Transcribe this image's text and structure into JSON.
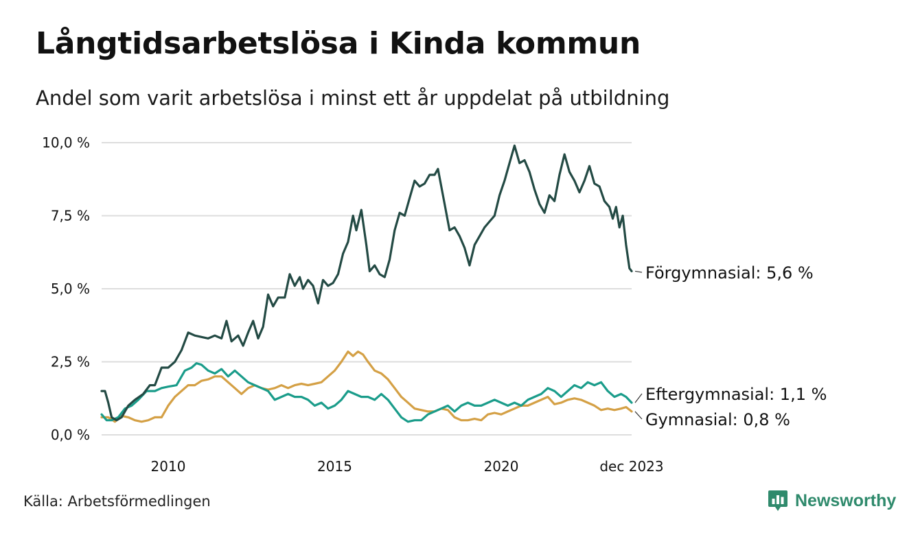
{
  "header": {
    "title": "Långtidsarbetslösa i Kinda kommun",
    "subtitle": "Andel som varit arbetslösa i minst ett år uppdelat på utbildning"
  },
  "footer": {
    "source": "Källa: Arbetsförmedlingen",
    "brand": "Newsworthy"
  },
  "colors": {
    "forgymnasial": "#234a44",
    "eftergymnasial": "#1a9c8a",
    "gymnasial": "#d4a045",
    "grid": "#dddddd",
    "brand": "#2f8a6c"
  },
  "chart_data": {
    "type": "line",
    "x_start": 2008.0,
    "x_end": 2023.917,
    "ylim": [
      0,
      10
    ],
    "yticks": [
      0,
      2.5,
      5,
      7.5,
      10
    ],
    "ytick_labels": [
      "0,0 %",
      "2,5 %",
      "5,0 %",
      "7,5 %",
      "10,0 %"
    ],
    "xticks": [
      2010,
      2015,
      2020,
      2023.917
    ],
    "xtick_labels": [
      "2010",
      "2015",
      "2020",
      "dec 2023"
    ],
    "series": [
      {
        "key": "forgymnasial",
        "name": "Förgymnasial",
        "end_label": "Förgymnasial: 5,6 %",
        "last_value": 5.6,
        "points": [
          [
            2008.0,
            1.5
          ],
          [
            2008.1,
            1.5
          ],
          [
            2008.2,
            1.1
          ],
          [
            2008.3,
            0.6
          ],
          [
            2008.45,
            0.5
          ],
          [
            2008.6,
            0.6
          ],
          [
            2008.8,
            1.0
          ],
          [
            2009.0,
            1.2
          ],
          [
            2009.25,
            1.4
          ],
          [
            2009.45,
            1.7
          ],
          [
            2009.6,
            1.7
          ],
          [
            2009.8,
            2.3
          ],
          [
            2010.0,
            2.3
          ],
          [
            2010.2,
            2.5
          ],
          [
            2010.4,
            2.9
          ],
          [
            2010.6,
            3.5
          ],
          [
            2010.8,
            3.4
          ],
          [
            2011.0,
            3.35
          ],
          [
            2011.2,
            3.3
          ],
          [
            2011.4,
            3.4
          ],
          [
            2011.6,
            3.3
          ],
          [
            2011.75,
            3.9
          ],
          [
            2011.9,
            3.2
          ],
          [
            2012.1,
            3.4
          ],
          [
            2012.25,
            3.05
          ],
          [
            2012.4,
            3.5
          ],
          [
            2012.55,
            3.9
          ],
          [
            2012.7,
            3.3
          ],
          [
            2012.85,
            3.7
          ],
          [
            2013.0,
            4.8
          ],
          [
            2013.15,
            4.4
          ],
          [
            2013.3,
            4.7
          ],
          [
            2013.5,
            4.7
          ],
          [
            2013.65,
            5.5
          ],
          [
            2013.8,
            5.1
          ],
          [
            2013.95,
            5.4
          ],
          [
            2014.05,
            5.0
          ],
          [
            2014.2,
            5.3
          ],
          [
            2014.35,
            5.1
          ],
          [
            2014.5,
            4.5
          ],
          [
            2014.65,
            5.3
          ],
          [
            2014.8,
            5.1
          ],
          [
            2014.95,
            5.2
          ],
          [
            2015.1,
            5.5
          ],
          [
            2015.25,
            6.2
          ],
          [
            2015.4,
            6.6
          ],
          [
            2015.55,
            7.5
          ],
          [
            2015.65,
            7.0
          ],
          [
            2015.8,
            7.7
          ],
          [
            2015.95,
            6.5
          ],
          [
            2016.05,
            5.6
          ],
          [
            2016.2,
            5.8
          ],
          [
            2016.35,
            5.5
          ],
          [
            2016.5,
            5.4
          ],
          [
            2016.65,
            6.0
          ],
          [
            2016.8,
            7.0
          ],
          [
            2016.95,
            7.6
          ],
          [
            2017.1,
            7.5
          ],
          [
            2017.25,
            8.1
          ],
          [
            2017.4,
            8.7
          ],
          [
            2017.55,
            8.5
          ],
          [
            2017.7,
            8.6
          ],
          [
            2017.85,
            8.9
          ],
          [
            2018.0,
            8.9
          ],
          [
            2018.1,
            9.1
          ],
          [
            2018.3,
            7.9
          ],
          [
            2018.45,
            7.0
          ],
          [
            2018.6,
            7.1
          ],
          [
            2018.75,
            6.8
          ],
          [
            2018.9,
            6.4
          ],
          [
            2019.05,
            5.8
          ],
          [
            2019.2,
            6.5
          ],
          [
            2019.35,
            6.8
          ],
          [
            2019.5,
            7.1
          ],
          [
            2019.65,
            7.3
          ],
          [
            2019.8,
            7.5
          ],
          [
            2019.95,
            8.2
          ],
          [
            2020.1,
            8.7
          ],
          [
            2020.25,
            9.3
          ],
          [
            2020.4,
            9.9
          ],
          [
            2020.55,
            9.3
          ],
          [
            2020.7,
            9.4
          ],
          [
            2020.85,
            9.0
          ],
          [
            2021.0,
            8.4
          ],
          [
            2021.15,
            7.9
          ],
          [
            2021.3,
            7.6
          ],
          [
            2021.45,
            8.2
          ],
          [
            2021.6,
            8.0
          ],
          [
            2021.75,
            8.9
          ],
          [
            2021.9,
            9.6
          ],
          [
            2022.05,
            9.0
          ],
          [
            2022.2,
            8.7
          ],
          [
            2022.35,
            8.3
          ],
          [
            2022.5,
            8.7
          ],
          [
            2022.65,
            9.2
          ],
          [
            2022.8,
            8.6
          ],
          [
            2022.95,
            8.5
          ],
          [
            2023.1,
            8.0
          ],
          [
            2023.25,
            7.8
          ],
          [
            2023.35,
            7.4
          ],
          [
            2023.45,
            7.8
          ],
          [
            2023.55,
            7.1
          ],
          [
            2023.65,
            7.5
          ],
          [
            2023.75,
            6.5
          ],
          [
            2023.85,
            5.7
          ],
          [
            2023.917,
            5.6
          ]
        ]
      },
      {
        "key": "eftergymnasial",
        "name": "Eftergymnasial",
        "end_label": "Eftergymnasial: 1,1 %",
        "last_value": 1.1,
        "points": [
          [
            2008.0,
            0.7
          ],
          [
            2008.15,
            0.5
          ],
          [
            2008.3,
            0.5
          ],
          [
            2008.5,
            0.6
          ],
          [
            2008.7,
            0.9
          ],
          [
            2008.9,
            1.0
          ],
          [
            2009.1,
            1.2
          ],
          [
            2009.35,
            1.5
          ],
          [
            2009.6,
            1.5
          ],
          [
            2009.8,
            1.6
          ],
          [
            2010.0,
            1.65
          ],
          [
            2010.25,
            1.7
          ],
          [
            2010.5,
            2.2
          ],
          [
            2010.7,
            2.3
          ],
          [
            2010.85,
            2.45
          ],
          [
            2011.0,
            2.4
          ],
          [
            2011.2,
            2.2
          ],
          [
            2011.4,
            2.1
          ],
          [
            2011.6,
            2.25
          ],
          [
            2011.8,
            2.0
          ],
          [
            2012.0,
            2.2
          ],
          [
            2012.2,
            2.0
          ],
          [
            2012.4,
            1.8
          ],
          [
            2012.6,
            1.7
          ],
          [
            2012.8,
            1.6
          ],
          [
            2013.0,
            1.5
          ],
          [
            2013.2,
            1.2
          ],
          [
            2013.4,
            1.3
          ],
          [
            2013.6,
            1.4
          ],
          [
            2013.8,
            1.3
          ],
          [
            2014.0,
            1.3
          ],
          [
            2014.2,
            1.2
          ],
          [
            2014.4,
            1.0
          ],
          [
            2014.6,
            1.1
          ],
          [
            2014.8,
            0.9
          ],
          [
            2015.0,
            1.0
          ],
          [
            2015.2,
            1.2
          ],
          [
            2015.4,
            1.5
          ],
          [
            2015.6,
            1.4
          ],
          [
            2015.8,
            1.3
          ],
          [
            2016.0,
            1.3
          ],
          [
            2016.2,
            1.2
          ],
          [
            2016.4,
            1.4
          ],
          [
            2016.6,
            1.2
          ],
          [
            2016.8,
            0.9
          ],
          [
            2017.0,
            0.6
          ],
          [
            2017.2,
            0.45
          ],
          [
            2017.4,
            0.5
          ],
          [
            2017.6,
            0.5
          ],
          [
            2017.8,
            0.7
          ],
          [
            2018.0,
            0.8
          ],
          [
            2018.2,
            0.9
          ],
          [
            2018.4,
            1.0
          ],
          [
            2018.6,
            0.8
          ],
          [
            2018.8,
            1.0
          ],
          [
            2019.0,
            1.1
          ],
          [
            2019.2,
            1.0
          ],
          [
            2019.4,
            1.0
          ],
          [
            2019.6,
            1.1
          ],
          [
            2019.8,
            1.2
          ],
          [
            2020.0,
            1.1
          ],
          [
            2020.2,
            1.0
          ],
          [
            2020.4,
            1.1
          ],
          [
            2020.6,
            1.0
          ],
          [
            2020.8,
            1.2
          ],
          [
            2021.0,
            1.3
          ],
          [
            2021.2,
            1.4
          ],
          [
            2021.4,
            1.6
          ],
          [
            2021.6,
            1.5
          ],
          [
            2021.8,
            1.3
          ],
          [
            2022.0,
            1.5
          ],
          [
            2022.2,
            1.7
          ],
          [
            2022.4,
            1.6
          ],
          [
            2022.6,
            1.8
          ],
          [
            2022.8,
            1.7
          ],
          [
            2023.0,
            1.8
          ],
          [
            2023.2,
            1.5
          ],
          [
            2023.4,
            1.3
          ],
          [
            2023.6,
            1.4
          ],
          [
            2023.75,
            1.3
          ],
          [
            2023.917,
            1.1
          ]
        ]
      },
      {
        "key": "gymnasial",
        "name": "Gymnasial",
        "end_label": "Gymnasial: 0,8 %",
        "last_value": 0.8,
        "points": [
          [
            2008.0,
            0.6
          ],
          [
            2008.2,
            0.6
          ],
          [
            2008.4,
            0.45
          ],
          [
            2008.6,
            0.65
          ],
          [
            2008.8,
            0.6
          ],
          [
            2009.0,
            0.5
          ],
          [
            2009.2,
            0.45
          ],
          [
            2009.4,
            0.5
          ],
          [
            2009.6,
            0.6
          ],
          [
            2009.8,
            0.6
          ],
          [
            2010.0,
            1.0
          ],
          [
            2010.2,
            1.3
          ],
          [
            2010.4,
            1.5
          ],
          [
            2010.6,
            1.7
          ],
          [
            2010.8,
            1.7
          ],
          [
            2011.0,
            1.85
          ],
          [
            2011.2,
            1.9
          ],
          [
            2011.4,
            2.0
          ],
          [
            2011.6,
            2.0
          ],
          [
            2011.8,
            1.8
          ],
          [
            2012.0,
            1.6
          ],
          [
            2012.2,
            1.4
          ],
          [
            2012.4,
            1.6
          ],
          [
            2012.6,
            1.7
          ],
          [
            2012.8,
            1.6
          ],
          [
            2013.0,
            1.55
          ],
          [
            2013.2,
            1.6
          ],
          [
            2013.4,
            1.7
          ],
          [
            2013.6,
            1.6
          ],
          [
            2013.8,
            1.7
          ],
          [
            2014.0,
            1.75
          ],
          [
            2014.2,
            1.7
          ],
          [
            2014.4,
            1.75
          ],
          [
            2014.6,
            1.8
          ],
          [
            2014.8,
            2.0
          ],
          [
            2015.0,
            2.2
          ],
          [
            2015.2,
            2.5
          ],
          [
            2015.4,
            2.85
          ],
          [
            2015.55,
            2.7
          ],
          [
            2015.7,
            2.85
          ],
          [
            2015.85,
            2.75
          ],
          [
            2016.0,
            2.5
          ],
          [
            2016.2,
            2.2
          ],
          [
            2016.4,
            2.1
          ],
          [
            2016.6,
            1.9
          ],
          [
            2016.8,
            1.6
          ],
          [
            2017.0,
            1.3
          ],
          [
            2017.2,
            1.1
          ],
          [
            2017.4,
            0.9
          ],
          [
            2017.6,
            0.85
          ],
          [
            2017.8,
            0.8
          ],
          [
            2018.0,
            0.8
          ],
          [
            2018.2,
            0.9
          ],
          [
            2018.4,
            0.85
          ],
          [
            2018.6,
            0.6
          ],
          [
            2018.8,
            0.5
          ],
          [
            2019.0,
            0.5
          ],
          [
            2019.2,
            0.55
          ],
          [
            2019.4,
            0.5
          ],
          [
            2019.6,
            0.7
          ],
          [
            2019.8,
            0.75
          ],
          [
            2020.0,
            0.7
          ],
          [
            2020.2,
            0.8
          ],
          [
            2020.4,
            0.9
          ],
          [
            2020.6,
            1.0
          ],
          [
            2020.8,
            1.0
          ],
          [
            2021.0,
            1.1
          ],
          [
            2021.2,
            1.2
          ],
          [
            2021.4,
            1.3
          ],
          [
            2021.6,
            1.05
          ],
          [
            2021.8,
            1.1
          ],
          [
            2022.0,
            1.2
          ],
          [
            2022.2,
            1.25
          ],
          [
            2022.4,
            1.2
          ],
          [
            2022.6,
            1.1
          ],
          [
            2022.8,
            1.0
          ],
          [
            2023.0,
            0.85
          ],
          [
            2023.2,
            0.9
          ],
          [
            2023.4,
            0.85
          ],
          [
            2023.6,
            0.9
          ],
          [
            2023.75,
            0.95
          ],
          [
            2023.917,
            0.8
          ]
        ]
      }
    ]
  }
}
